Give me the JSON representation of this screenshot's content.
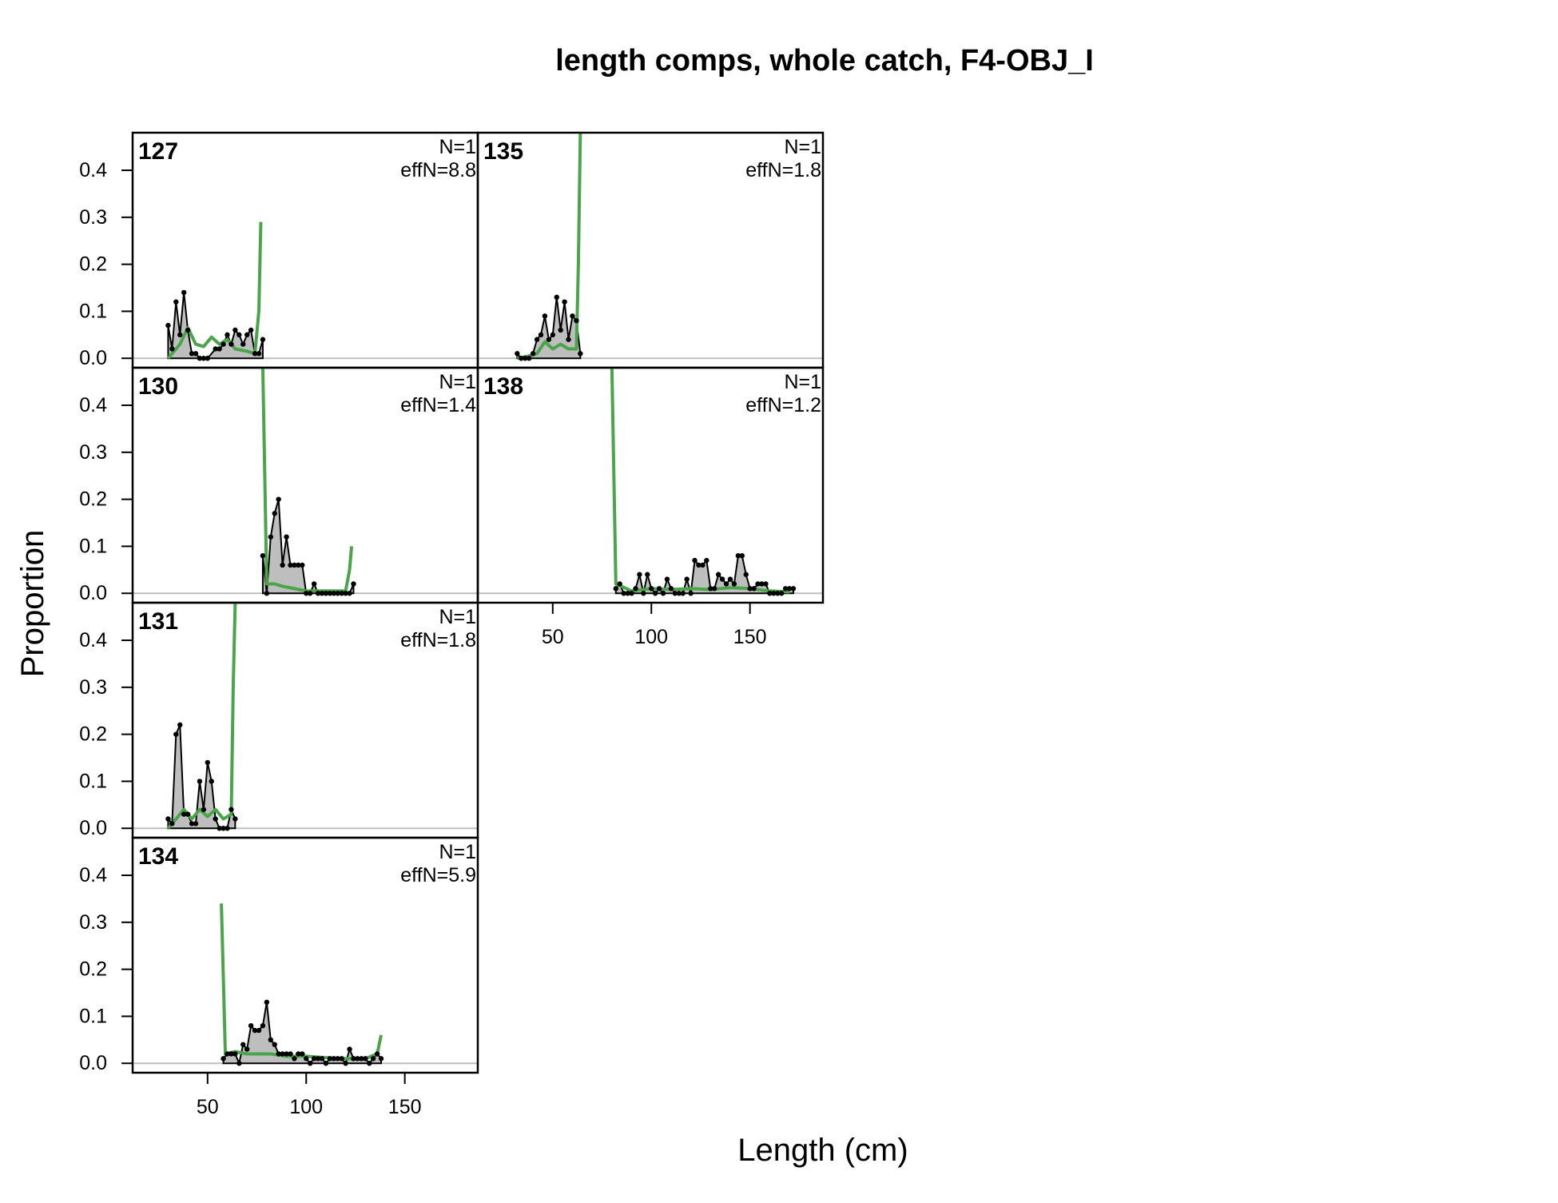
{
  "chart_data": {
    "type": "area",
    "title": "length comps, whole catch, F4-OBJ_I",
    "xlabel": "Length (cm)",
    "ylabel": "Proportion",
    "xlim": [
      12,
      187
    ],
    "ylim": [
      -0.02,
      0.48
    ],
    "xticks": [
      50,
      100,
      150
    ],
    "yticks": [
      0.0,
      0.1,
      0.2,
      0.3,
      0.4
    ],
    "ytick_labels": [
      "0.0",
      "0.1",
      "0.2",
      "0.3",
      "0.4"
    ],
    "grid": false,
    "legend": "none",
    "colors": {
      "observed_fill": "#bebebe",
      "observed_line": "#000000",
      "expected_line": "#4aa54a",
      "zero_line": "#bebebe"
    },
    "panels": [
      {
        "label": "127",
        "n_text": "N=1",
        "effn_text": "effN=8.8",
        "observed": [
          [
            30,
            0.07
          ],
          [
            32,
            0.02
          ],
          [
            34,
            0.12
          ],
          [
            36,
            0.05
          ],
          [
            38,
            0.14
          ],
          [
            40,
            0.06
          ],
          [
            42,
            0.01
          ],
          [
            44,
            0.01
          ],
          [
            46,
            0.0
          ],
          [
            48,
            0.0
          ],
          [
            50,
            0.0
          ],
          [
            54,
            0.02
          ],
          [
            56,
            0.02
          ],
          [
            58,
            0.03
          ],
          [
            60,
            0.05
          ],
          [
            62,
            0.03
          ],
          [
            64,
            0.06
          ],
          [
            66,
            0.05
          ],
          [
            68,
            0.03
          ],
          [
            70,
            0.05
          ],
          [
            72,
            0.06
          ],
          [
            74,
            0.01
          ],
          [
            76,
            0.01
          ],
          [
            78,
            0.04
          ]
        ],
        "expected": [
          [
            30,
            0.0
          ],
          [
            36,
            0.03
          ],
          [
            40,
            0.065
          ],
          [
            44,
            0.03
          ],
          [
            48,
            0.025
          ],
          [
            52,
            0.045
          ],
          [
            56,
            0.03
          ],
          [
            60,
            0.04
          ],
          [
            64,
            0.02
          ],
          [
            70,
            0.015
          ],
          [
            74,
            0.01
          ],
          [
            76,
            0.1
          ],
          [
            77,
            0.29
          ]
        ]
      },
      {
        "label": "135",
        "n_text": "N=1",
        "effn_text": "effN=1.8",
        "observed": [
          [
            32,
            0.01
          ],
          [
            34,
            0.0
          ],
          [
            36,
            0.0
          ],
          [
            38,
            0.0
          ],
          [
            40,
            0.01
          ],
          [
            42,
            0.04
          ],
          [
            44,
            0.05
          ],
          [
            46,
            0.09
          ],
          [
            48,
            0.04
          ],
          [
            50,
            0.05
          ],
          [
            52,
            0.13
          ],
          [
            54,
            0.06
          ],
          [
            56,
            0.12
          ],
          [
            58,
            0.04
          ],
          [
            60,
            0.09
          ],
          [
            62,
            0.08
          ],
          [
            64,
            0.01
          ]
        ],
        "expected": [
          [
            32,
            0.0
          ],
          [
            38,
            0.005
          ],
          [
            42,
            0.01
          ],
          [
            46,
            0.035
          ],
          [
            50,
            0.02
          ],
          [
            54,
            0.03
          ],
          [
            58,
            0.02
          ],
          [
            62,
            0.02
          ],
          [
            63,
            0.2
          ],
          [
            64,
            0.5
          ]
        ]
      },
      {
        "label": "130",
        "n_text": "N=1",
        "effn_text": "effN=1.4",
        "observed": [
          [
            78,
            0.08
          ],
          [
            80,
            0.0
          ],
          [
            82,
            0.12
          ],
          [
            84,
            0.17
          ],
          [
            86,
            0.2
          ],
          [
            88,
            0.06
          ],
          [
            90,
            0.12
          ],
          [
            92,
            0.06
          ],
          [
            94,
            0.06
          ],
          [
            96,
            0.06
          ],
          [
            98,
            0.06
          ],
          [
            100,
            0.0
          ],
          [
            102,
            0.0
          ],
          [
            104,
            0.02
          ],
          [
            106,
            0.0
          ],
          [
            108,
            0.0
          ],
          [
            110,
            0.0
          ],
          [
            112,
            0.0
          ],
          [
            114,
            0.0
          ],
          [
            116,
            0.0
          ],
          [
            118,
            0.0
          ],
          [
            120,
            0.0
          ],
          [
            122,
            0.0
          ],
          [
            124,
            0.02
          ]
        ],
        "expected": [
          [
            78,
            0.5
          ],
          [
            80,
            0.02
          ],
          [
            84,
            0.02
          ],
          [
            88,
            0.015
          ],
          [
            94,
            0.01
          ],
          [
            100,
            0.005
          ],
          [
            110,
            0.005
          ],
          [
            120,
            0.005
          ],
          [
            122,
            0.05
          ],
          [
            123,
            0.1
          ]
        ]
      },
      {
        "label": "138",
        "n_text": "N=1",
        "effn_text": "effN=1.2",
        "observed": [
          [
            82,
            0.01
          ],
          [
            84,
            0.02
          ],
          [
            86,
            0.0
          ],
          [
            88,
            0.0
          ],
          [
            90,
            0.0
          ],
          [
            92,
            0.01
          ],
          [
            94,
            0.04
          ],
          [
            96,
            0.0
          ],
          [
            98,
            0.04
          ],
          [
            100,
            0.01
          ],
          [
            102,
            0.0
          ],
          [
            104,
            0.01
          ],
          [
            106,
            0.0
          ],
          [
            108,
            0.03
          ],
          [
            110,
            0.01
          ],
          [
            112,
            0.0
          ],
          [
            114,
            0.0
          ],
          [
            116,
            0.0
          ],
          [
            118,
            0.03
          ],
          [
            120,
            0.0
          ],
          [
            122,
            0.07
          ],
          [
            124,
            0.06
          ],
          [
            126,
            0.06
          ],
          [
            128,
            0.07
          ],
          [
            130,
            0.01
          ],
          [
            132,
            0.01
          ],
          [
            134,
            0.04
          ],
          [
            136,
            0.03
          ],
          [
            138,
            0.02
          ],
          [
            140,
            0.03
          ],
          [
            142,
            0.02
          ],
          [
            144,
            0.08
          ],
          [
            146,
            0.08
          ],
          [
            148,
            0.04
          ],
          [
            150,
            0.01
          ],
          [
            152,
            0.01
          ],
          [
            154,
            0.02
          ],
          [
            156,
            0.02
          ],
          [
            158,
            0.02
          ],
          [
            160,
            0.0
          ],
          [
            162,
            0.0
          ],
          [
            164,
            0.0
          ],
          [
            166,
            0.0
          ],
          [
            168,
            0.01
          ],
          [
            170,
            0.01
          ],
          [
            172,
            0.01
          ]
        ],
        "expected": [
          [
            80,
            0.5
          ],
          [
            82,
            0.02
          ],
          [
            90,
            0.005
          ],
          [
            100,
            0.01
          ],
          [
            110,
            0.008
          ],
          [
            120,
            0.01
          ],
          [
            130,
            0.008
          ],
          [
            140,
            0.012
          ],
          [
            150,
            0.01
          ],
          [
            160,
            0.005
          ],
          [
            170,
            0.003
          ]
        ]
      },
      {
        "label": "131",
        "n_text": "N=1",
        "effn_text": "effN=1.8",
        "observed": [
          [
            30,
            0.02
          ],
          [
            32,
            0.01
          ],
          [
            34,
            0.2
          ],
          [
            36,
            0.22
          ],
          [
            38,
            0.03
          ],
          [
            40,
            0.03
          ],
          [
            42,
            0.01
          ],
          [
            44,
            0.01
          ],
          [
            46,
            0.1
          ],
          [
            48,
            0.04
          ],
          [
            50,
            0.14
          ],
          [
            52,
            0.1
          ],
          [
            54,
            0.02
          ],
          [
            56,
            0.0
          ],
          [
            58,
            0.0
          ],
          [
            60,
            0.0
          ],
          [
            62,
            0.04
          ],
          [
            64,
            0.02
          ]
        ],
        "expected": [
          [
            30,
            0.0
          ],
          [
            34,
            0.02
          ],
          [
            38,
            0.04
          ],
          [
            42,
            0.02
          ],
          [
            46,
            0.04
          ],
          [
            50,
            0.025
          ],
          [
            54,
            0.04
          ],
          [
            58,
            0.02
          ],
          [
            62,
            0.03
          ],
          [
            63,
            0.3
          ],
          [
            64,
            0.5
          ]
        ]
      },
      {
        "label": "134",
        "n_text": "N=1",
        "effn_text": "effN=5.9",
        "observed": [
          [
            58,
            0.01
          ],
          [
            60,
            0.02
          ],
          [
            62,
            0.02
          ],
          [
            64,
            0.02
          ],
          [
            66,
            0.0
          ],
          [
            68,
            0.04
          ],
          [
            70,
            0.03
          ],
          [
            72,
            0.08
          ],
          [
            74,
            0.07
          ],
          [
            76,
            0.07
          ],
          [
            78,
            0.08
          ],
          [
            80,
            0.13
          ],
          [
            82,
            0.05
          ],
          [
            84,
            0.04
          ],
          [
            86,
            0.02
          ],
          [
            88,
            0.02
          ],
          [
            90,
            0.02
          ],
          [
            92,
            0.02
          ],
          [
            94,
            0.01
          ],
          [
            96,
            0.02
          ],
          [
            98,
            0.02
          ],
          [
            100,
            0.01
          ],
          [
            102,
            0.0
          ],
          [
            104,
            0.01
          ],
          [
            106,
            0.01
          ],
          [
            108,
            0.01
          ],
          [
            110,
            0.0
          ],
          [
            112,
            0.01
          ],
          [
            114,
            0.01
          ],
          [
            116,
            0.01
          ],
          [
            118,
            0.01
          ],
          [
            120,
            0.0
          ],
          [
            122,
            0.03
          ],
          [
            124,
            0.01
          ],
          [
            126,
            0.01
          ],
          [
            128,
            0.01
          ],
          [
            130,
            0.01
          ],
          [
            132,
            0.0
          ],
          [
            134,
            0.01
          ],
          [
            136,
            0.02
          ],
          [
            138,
            0.01
          ]
        ],
        "expected": [
          [
            57,
            0.34
          ],
          [
            59,
            0.02
          ],
          [
            64,
            0.025
          ],
          [
            70,
            0.02
          ],
          [
            76,
            0.02
          ],
          [
            82,
            0.02
          ],
          [
            90,
            0.015
          ],
          [
            100,
            0.015
          ],
          [
            110,
            0.012
          ],
          [
            120,
            0.01
          ],
          [
            130,
            0.01
          ],
          [
            136,
            0.02
          ],
          [
            138,
            0.06
          ]
        ]
      }
    ]
  }
}
